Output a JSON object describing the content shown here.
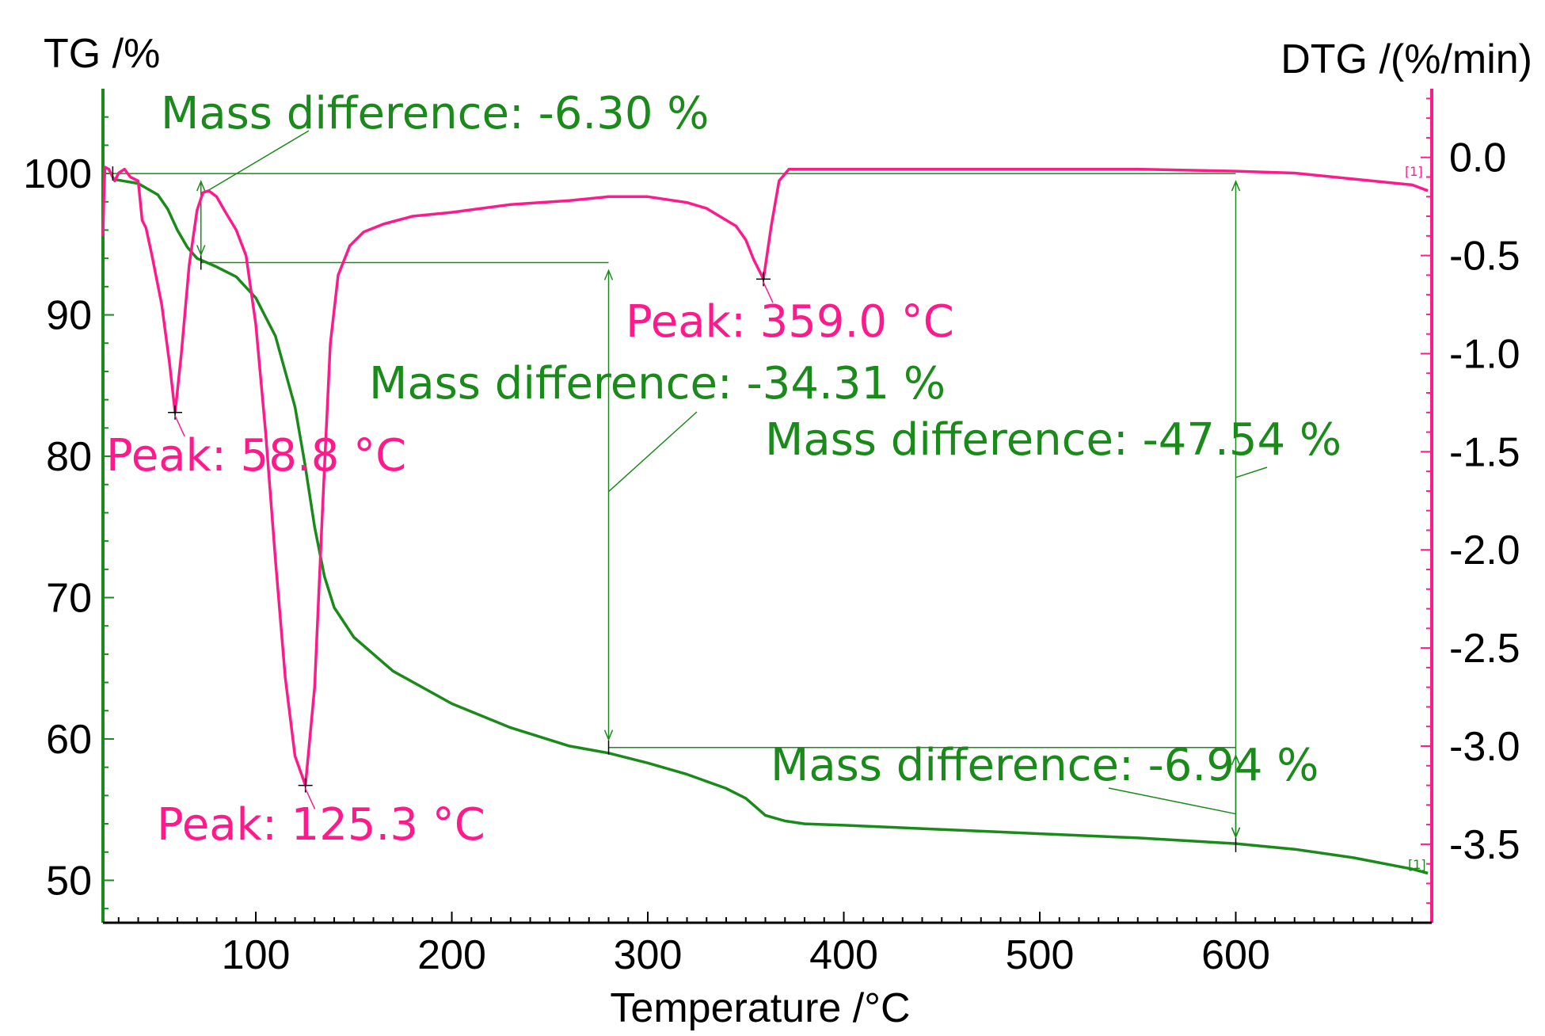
{
  "chart_data": {
    "type": "line",
    "left_axis_title": "TG /%",
    "right_axis_title": "DTG /(%/min)",
    "xlabel": "Temperature /°C",
    "xlim": [
      22,
      700
    ],
    "ylim_left": [
      47,
      106
    ],
    "ylim_right": [
      -3.9,
      0.35
    ],
    "x_ticks": [
      100,
      200,
      300,
      400,
      500,
      600
    ],
    "x_tick_labels": [
      "100",
      "200",
      "300",
      "400",
      "500",
      "600"
    ],
    "y_left_ticks": [
      100,
      90,
      80,
      70,
      60,
      50
    ],
    "y_left_tick_labels": [
      "100",
      "90",
      "80",
      "70",
      "60",
      "50"
    ],
    "y_right_ticks": [
      0.0,
      -0.5,
      -1.0,
      -1.5,
      -2.0,
      -2.5,
      -3.0,
      -3.5
    ],
    "y_right_tick_labels": [
      "0.0",
      "-0.5",
      "-1.0",
      "-1.5",
      "-2.0",
      "-2.5",
      "-3.0",
      "-3.5"
    ],
    "series": [
      {
        "name": "TG",
        "axis": "left",
        "color": "#1a8a1a",
        "x": [
          27,
          40,
          50,
          55,
          60,
          65,
          70,
          75,
          80,
          90,
          100,
          110,
          120,
          125,
          130,
          135,
          140,
          150,
          170,
          200,
          230,
          260,
          280,
          300,
          320,
          340,
          350,
          360,
          370,
          380,
          400,
          450,
          500,
          550,
          600,
          630,
          660,
          690,
          698
        ],
        "y": [
          99.6,
          99.3,
          98.5,
          97.5,
          96.0,
          94.8,
          94.0,
          93.7,
          93.4,
          92.7,
          91.2,
          88.5,
          83.5,
          79.5,
          75.0,
          71.5,
          69.3,
          67.2,
          64.8,
          62.5,
          60.8,
          59.5,
          59.0,
          58.3,
          57.5,
          56.5,
          55.8,
          54.6,
          54.2,
          54.0,
          53.9,
          53.6,
          53.3,
          53.0,
          52.6,
          52.2,
          51.6,
          50.8,
          50.5
        ]
      },
      {
        "name": "DTG",
        "axis": "right",
        "color": "#ff1a8c",
        "x": [
          22,
          22.5,
          23,
          25,
          28,
          30,
          33,
          36,
          40,
          42,
          44,
          47,
          52,
          56,
          58.8,
          62,
          66,
          70,
          73,
          76,
          80,
          84,
          90,
          95,
          100,
          105,
          110,
          115,
          120,
          125.3,
          130,
          134,
          138,
          142,
          148,
          155,
          165,
          180,
          200,
          230,
          260,
          280,
          300,
          320,
          330,
          340,
          345,
          350,
          354,
          359,
          363,
          367,
          372,
          380,
          400,
          450,
          500,
          550,
          600,
          630,
          660,
          690,
          698
        ],
        "y": [
          -0.4,
          -0.2,
          -0.05,
          -0.06,
          -0.12,
          -0.08,
          -0.06,
          -0.1,
          -0.12,
          -0.32,
          -0.36,
          -0.5,
          -0.75,
          -1.05,
          -1.3,
          -1.0,
          -0.55,
          -0.27,
          -0.18,
          -0.17,
          -0.2,
          -0.27,
          -0.37,
          -0.5,
          -0.85,
          -1.4,
          -2.05,
          -2.65,
          -3.05,
          -3.2,
          -2.7,
          -1.8,
          -0.95,
          -0.6,
          -0.45,
          -0.38,
          -0.34,
          -0.3,
          -0.28,
          -0.24,
          -0.22,
          -0.2,
          -0.2,
          -0.23,
          -0.26,
          -0.32,
          -0.35,
          -0.42,
          -0.52,
          -0.62,
          -0.35,
          -0.12,
          -0.06,
          -0.06,
          -0.06,
          -0.06,
          -0.06,
          -0.06,
          -0.07,
          -0.08,
          -0.11,
          -0.14,
          -0.17
        ]
      }
    ],
    "peaks": [
      {
        "label": "Peak: 58.8 °C",
        "x": 58.8,
        "y": -1.3
      },
      {
        "label": "Peak: 125.3 °C",
        "x": 125.3,
        "y": -3.2
      },
      {
        "label": "Peak: 359.0 °C",
        "x": 359.0,
        "y": -0.62
      }
    ],
    "mass_differences": [
      {
        "label": "Mass difference: -6.30 %",
        "x": 72,
        "y_from": 100.0,
        "y_to": 93.7
      },
      {
        "label": "Mass difference: -34.31 %",
        "x": 280,
        "y_from": 93.7,
        "y_to": 59.4
      },
      {
        "label": "Mass difference: -47.54 %",
        "x": 600,
        "y_from": 100.0,
        "y_to": 52.5
      },
      {
        "label": "Mass difference: -6.94 %",
        "x": 600,
        "y_from": 59.4,
        "y_to": 52.5
      }
    ],
    "curve_tags": [
      "[1]",
      "[1]"
    ]
  }
}
